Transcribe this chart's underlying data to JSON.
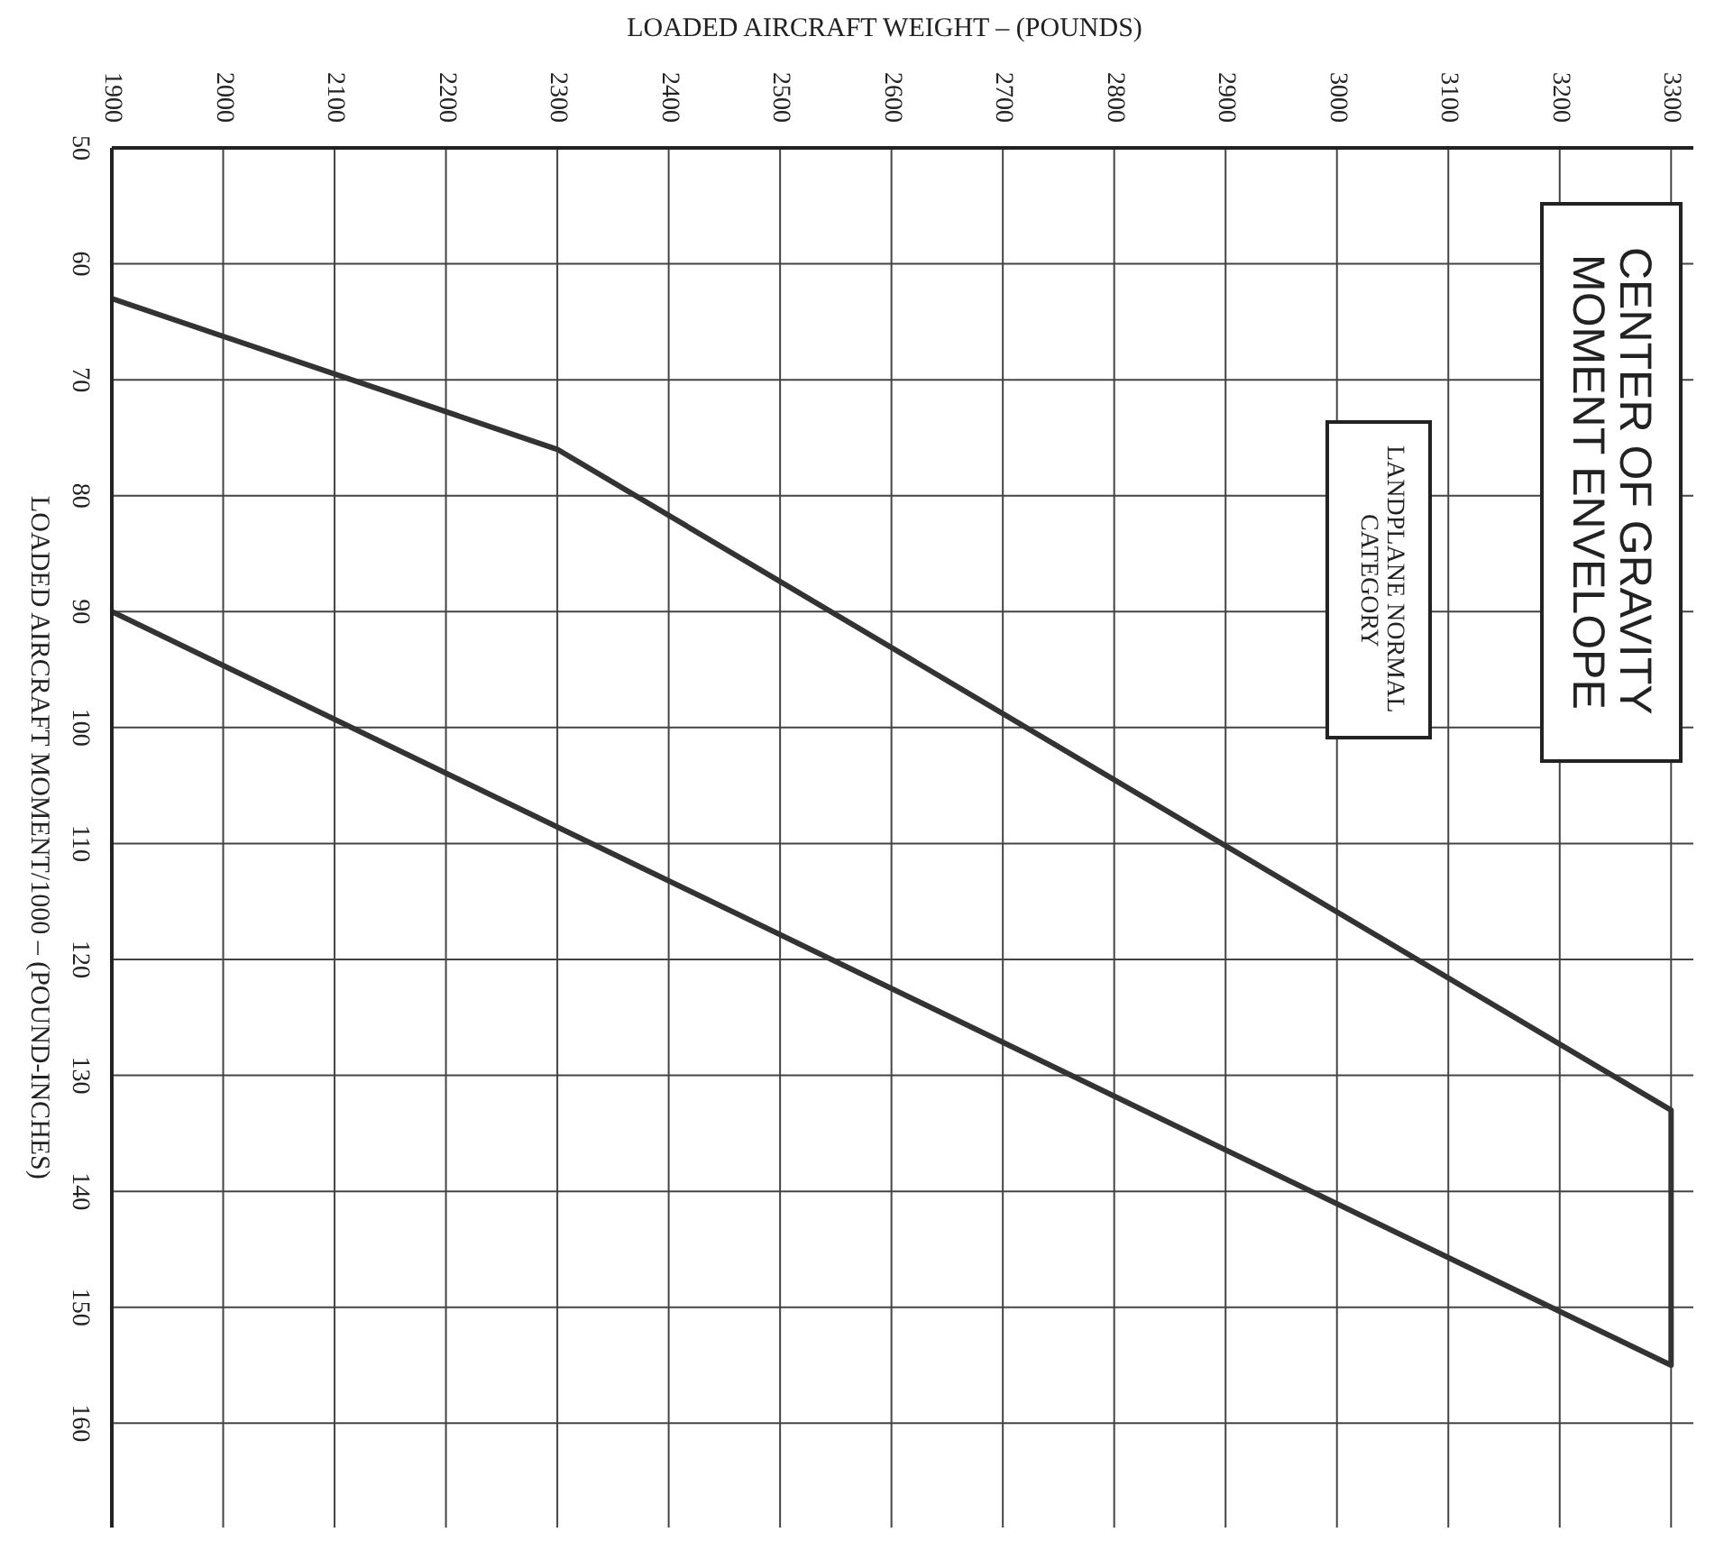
{
  "chart_data": {
    "type": "line",
    "title": "CENTER OF GRAVITY MOMENT ENVELOPE",
    "xlabel": "LOADED AIRCRAFT WEIGHT – (POUNDS)",
    "ylabel": "LOADED AIRCRAFT MOMENT/1000 – (POUND-INCHES)",
    "annotations": [
      "LANDPLANE NORMAL CATEGORY"
    ],
    "series": [
      {
        "color": "#333333",
        "x": [
          1900,
          2300,
          3300,
          3300,
          1900
        ],
        "values": [
          63,
          76,
          133,
          155,
          90
        ]
      }
    ],
    "xlim": [
      1900,
      3320
    ],
    "xticks": [
      1900,
      2000,
      2100,
      2200,
      2300,
      2400,
      2500,
      2600,
      2700,
      2800,
      2900,
      3000,
      3100,
      3200,
      3300
    ],
    "ylim": [
      169,
      50
    ],
    "yticks": [
      50,
      60,
      70,
      80,
      90,
      100,
      110,
      120,
      130,
      140,
      150,
      160
    ],
    "grid": true,
    "legend": false,
    "marker": "none",
    "line_style": "solid"
  }
}
